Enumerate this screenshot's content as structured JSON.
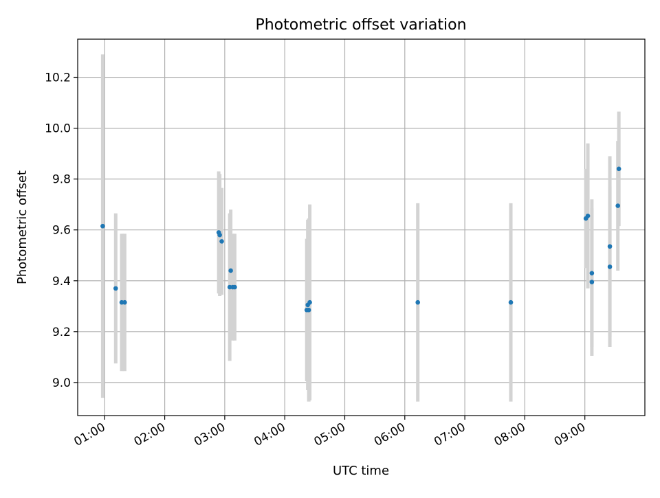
{
  "chart_data": {
    "type": "scatter",
    "title": "Photometric offset variation",
    "xlabel": "UTC time",
    "ylabel": "Photometric offset",
    "x_ticks": [
      "01:00",
      "02:00",
      "03:00",
      "04:00",
      "05:00",
      "06:00",
      "07:00",
      "08:00",
      "09:00"
    ],
    "y_ticks": [
      "9.0",
      "9.2",
      "9.4",
      "9.6",
      "9.8",
      "10.0",
      "10.2"
    ],
    "xlim": [
      "00:33",
      "10:00"
    ],
    "ylim": [
      8.87,
      10.35
    ],
    "grid": true,
    "errorbar_color": "#d3d3d3",
    "marker_color": "#1f77b4",
    "points": [
      {
        "x": "00:58",
        "y": 9.615,
        "yerr": 0.675
      },
      {
        "x": "01:11",
        "y": 9.37,
        "yerr": 0.295
      },
      {
        "x": "01:17",
        "y": 9.315,
        "yerr": 0.27
      },
      {
        "x": "01:20",
        "y": 9.315,
        "yerr": 0.27
      },
      {
        "x": "02:54",
        "y": 9.59,
        "yerr": 0.24
      },
      {
        "x": "02:55",
        "y": 9.58,
        "yerr": 0.24
      },
      {
        "x": "02:57",
        "y": 9.555,
        "yerr": 0.21
      },
      {
        "x": "03:05",
        "y": 9.375,
        "yerr": 0.29
      },
      {
        "x": "03:06",
        "y": 9.44,
        "yerr": 0.24
      },
      {
        "x": "03:08",
        "y": 9.375,
        "yerr": 0.21
      },
      {
        "x": "03:10",
        "y": 9.375,
        "yerr": 0.21
      },
      {
        "x": "04:22",
        "y": 9.285,
        "yerr": 0.28
      },
      {
        "x": "04:23",
        "y": 9.305,
        "yerr": 0.335
      },
      {
        "x": "04:24",
        "y": 9.285,
        "yerr": 0.36
      },
      {
        "x": "04:25",
        "y": 9.315,
        "yerr": 0.385
      },
      {
        "x": "06:13",
        "y": 9.315,
        "yerr": 0.39
      },
      {
        "x": "07:46",
        "y": 9.315,
        "yerr": 0.39
      },
      {
        "x": "09:01",
        "y": 9.645,
        "yerr": 0.195
      },
      {
        "x": "09:03",
        "y": 9.655,
        "yerr": 0.285
      },
      {
        "x": "09:07",
        "y": 9.43,
        "yerr": 0.29
      },
      {
        "x": "09:07",
        "y": 9.395,
        "yerr": 0.29
      },
      {
        "x": "09:25",
        "y": 9.535,
        "yerr": 0.355
      },
      {
        "x": "09:25",
        "y": 9.455,
        "yerr": 0.315
      },
      {
        "x": "09:33",
        "y": 9.695,
        "yerr": 0.255
      },
      {
        "x": "09:34",
        "y": 9.84,
        "yerr": 0.225
      }
    ]
  }
}
